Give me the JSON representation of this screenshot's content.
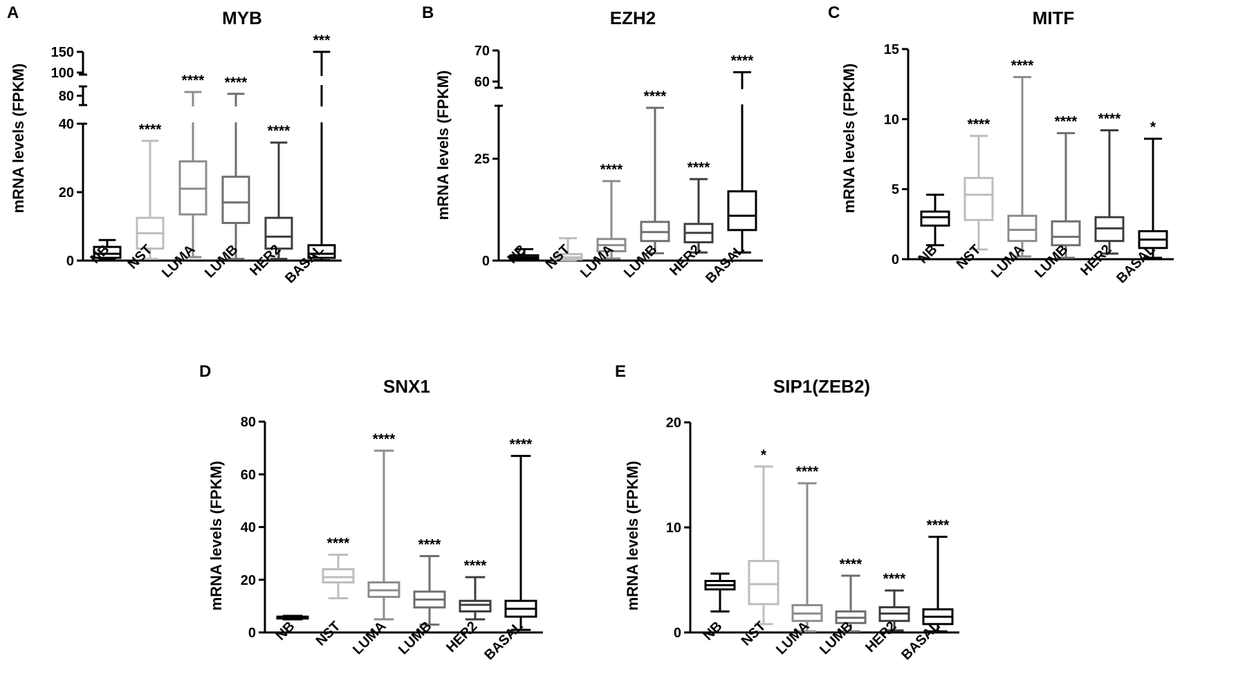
{
  "chart_data": [
    {
      "type": "boxplot",
      "panel": "A",
      "title": "MYB",
      "ylabel": "mRNA levels (FPKM)",
      "xlabel": "",
      "axis_break": true,
      "ylim": [
        0,
        150
      ],
      "yticks": [
        0,
        20,
        40,
        80,
        100,
        150
      ],
      "categories": [
        "NB",
        "NST",
        "LUMA",
        "LUMB",
        "HER2",
        "BASAL"
      ],
      "colors": [
        "#000000",
        "#bdbdbd",
        "#8c8c8c",
        "#6e6e6e",
        "#3d3d3d",
        "#000000"
      ],
      "boxes": [
        {
          "min": 0.2,
          "q1": 0.8,
          "median": 2,
          "q3": 4,
          "max": 6
        },
        {
          "min": 0.5,
          "q1": 3.5,
          "median": 8,
          "q3": 12.5,
          "max": 35
        },
        {
          "min": 1,
          "q1": 13.5,
          "median": 21,
          "q3": 29,
          "max": 82
        },
        {
          "min": 0.5,
          "q1": 11,
          "median": 17,
          "q3": 24.5,
          "max": 81
        },
        {
          "min": 0.5,
          "q1": 3.5,
          "median": 7,
          "q3": 12.5,
          "max": 34.5
        },
        {
          "min": 0.1,
          "q1": 0.8,
          "median": 2,
          "q3": 4.5,
          "max": 150
        }
      ],
      "significance": [
        "",
        "****",
        "****",
        "****",
        "****",
        "***"
      ]
    },
    {
      "type": "boxplot",
      "panel": "B",
      "title": "EZH2",
      "ylabel": "mRNA levels (FPKM)",
      "xlabel": "",
      "axis_break": true,
      "ylim": [
        0,
        70
      ],
      "yticks": [
        0,
        25,
        60,
        70
      ],
      "categories": [
        "NB",
        "NST",
        "LUMA",
        "LUMB",
        "HER2",
        "BASAL"
      ],
      "colors": [
        "#000000",
        "#bdbdbd",
        "#8c8c8c",
        "#6e6e6e",
        "#3d3d3d",
        "#000000"
      ],
      "boxes": [
        {
          "min": 0.1,
          "q1": 0.4,
          "median": 0.8,
          "q3": 1.3,
          "max": 2.8
        },
        {
          "min": 0.1,
          "q1": 0.3,
          "median": 0.8,
          "q3": 1.6,
          "max": 5.5
        },
        {
          "min": 0.5,
          "q1": 2.3,
          "median": 3.8,
          "q3": 5.3,
          "max": 19.5
        },
        {
          "min": 1.8,
          "q1": 4.8,
          "median": 7,
          "q3": 9.5,
          "max": 37.5
        },
        {
          "min": 2,
          "q1": 4.5,
          "median": 6.8,
          "q3": 9,
          "max": 20
        },
        {
          "min": 2,
          "q1": 7.5,
          "median": 11,
          "q3": 17,
          "max": 63
        }
      ],
      "significance": [
        "",
        "",
        "****",
        "****",
        "****",
        "****"
      ]
    },
    {
      "type": "boxplot",
      "panel": "C",
      "title": "MITF",
      "ylabel": "mRNA levels (FPKM)",
      "xlabel": "",
      "axis_break": false,
      "ylim": [
        0,
        15
      ],
      "yticks": [
        0,
        5,
        10,
        15
      ],
      "categories": [
        "NB",
        "NST",
        "LUMA",
        "LUMB",
        "HER2",
        "BASAL"
      ],
      "colors": [
        "#000000",
        "#bdbdbd",
        "#8c8c8c",
        "#6e6e6e",
        "#3d3d3d",
        "#000000"
      ],
      "boxes": [
        {
          "min": 1,
          "q1": 2.4,
          "median": 3,
          "q3": 3.4,
          "max": 4.6
        },
        {
          "min": 0.7,
          "q1": 2.8,
          "median": 4.6,
          "q3": 5.8,
          "max": 8.8
        },
        {
          "min": 0.2,
          "q1": 1.3,
          "median": 2.1,
          "q3": 3.1,
          "max": 13
        },
        {
          "min": 0.1,
          "q1": 1,
          "median": 1.6,
          "q3": 2.7,
          "max": 9
        },
        {
          "min": 0.4,
          "q1": 1.3,
          "median": 2.2,
          "q3": 3,
          "max": 9.2
        },
        {
          "min": 0.1,
          "q1": 0.8,
          "median": 1.4,
          "q3": 2,
          "max": 8.6
        }
      ],
      "significance": [
        "",
        "****",
        "****",
        "****",
        "****",
        "*"
      ]
    },
    {
      "type": "boxplot",
      "panel": "D",
      "title": "SNX1",
      "ylabel": "mRNA levels (FPKM)",
      "xlabel": "",
      "axis_break": false,
      "ylim": [
        0,
        80
      ],
      "yticks": [
        0,
        20,
        40,
        60,
        80
      ],
      "categories": [
        "NB",
        "NST",
        "LUMA",
        "LUMB",
        "HER2",
        "BASAL"
      ],
      "colors": [
        "#000000",
        "#bdbdbd",
        "#8c8c8c",
        "#6e6e6e",
        "#3d3d3d",
        "#000000"
      ],
      "boxes": [
        {
          "min": 5,
          "q1": 5.3,
          "median": 5.6,
          "q3": 6,
          "max": 6.3
        },
        {
          "min": 13,
          "q1": 19,
          "median": 21,
          "q3": 24,
          "max": 29.5
        },
        {
          "min": 5,
          "q1": 13.5,
          "median": 16,
          "q3": 19,
          "max": 69
        },
        {
          "min": 3,
          "q1": 9.5,
          "median": 12.5,
          "q3": 15.5,
          "max": 29
        },
        {
          "min": 5,
          "q1": 8,
          "median": 10.5,
          "q3": 12,
          "max": 21
        },
        {
          "min": 1,
          "q1": 6,
          "median": 9,
          "q3": 12,
          "max": 67
        }
      ],
      "significance": [
        "",
        "****",
        "****",
        "****",
        "****",
        "****"
      ]
    },
    {
      "type": "boxplot",
      "panel": "E",
      "title": "SIP1(ZEB2)",
      "ylabel": "mRNA levels (FPKM)",
      "xlabel": "",
      "axis_break": false,
      "ylim": [
        0,
        20
      ],
      "yticks": [
        0,
        10,
        20
      ],
      "categories": [
        "NB",
        "NST",
        "LUMA",
        "LUMB",
        "HER2",
        "BASAL"
      ],
      "colors": [
        "#000000",
        "#bdbdbd",
        "#8c8c8c",
        "#6e6e6e",
        "#3d3d3d",
        "#000000"
      ],
      "boxes": [
        {
          "min": 2,
          "q1": 4.1,
          "median": 4.5,
          "q3": 4.9,
          "max": 5.6
        },
        {
          "min": 0.8,
          "q1": 2.7,
          "median": 4.6,
          "q3": 6.8,
          "max": 15.8
        },
        {
          "min": 0.1,
          "q1": 1.1,
          "median": 1.8,
          "q3": 2.6,
          "max": 14.2
        },
        {
          "min": 0.1,
          "q1": 0.9,
          "median": 1.4,
          "q3": 2,
          "max": 5.4
        },
        {
          "min": 0.2,
          "q1": 1.1,
          "median": 1.8,
          "q3": 2.4,
          "max": 4
        },
        {
          "min": 0.1,
          "q1": 0.8,
          "median": 1.5,
          "q3": 2.2,
          "max": 9.1
        }
      ],
      "significance": [
        "",
        "*",
        "****",
        "****",
        "****",
        "****"
      ]
    }
  ]
}
